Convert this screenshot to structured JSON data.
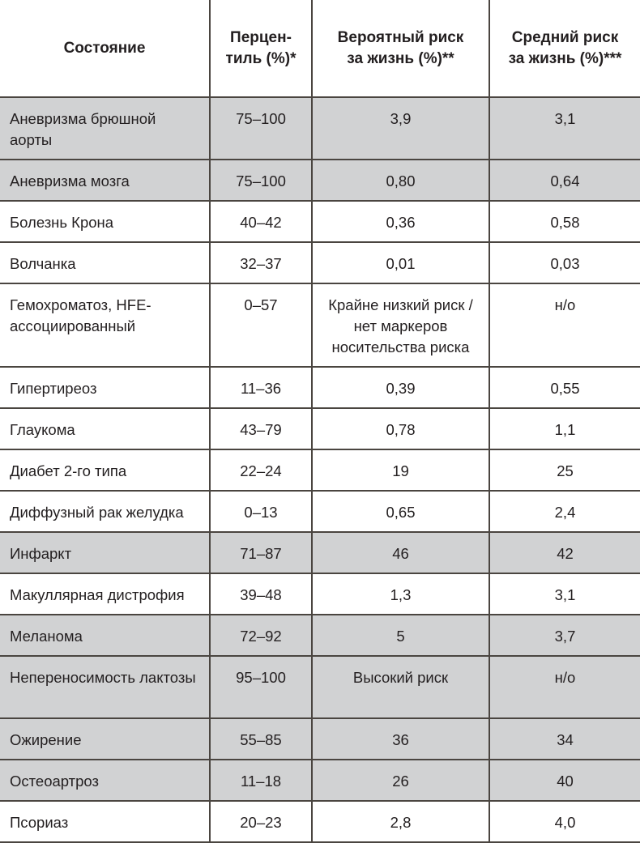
{
  "table": {
    "headers": [
      "Состояние",
      "Перцен-\nтиль (%)*",
      "Вероятный риск\nза жизнь (%)**",
      "Средний риск\nза жизнь (%)***"
    ],
    "header_lines": [
      [
        "Состояние"
      ],
      [
        "Перцен-",
        "тиль (%)*"
      ],
      [
        "Вероятный риск",
        "за жизнь (%)**"
      ],
      [
        "Средний риск",
        "за жизнь (%)***"
      ]
    ],
    "rows": [
      {
        "condition": "Аневризма брюшной аорты",
        "percentile": "75–100",
        "probable_risk": "3,9",
        "average_risk": "3,1",
        "shaded": true
      },
      {
        "condition": "Аневризма мозга",
        "percentile": "75–100",
        "probable_risk": "0,80",
        "average_risk": "0,64",
        "shaded": true
      },
      {
        "condition": "Болезнь Крона",
        "percentile": "40–42",
        "probable_risk": "0,36",
        "average_risk": "0,58",
        "shaded": false
      },
      {
        "condition": "Волчанка",
        "percentile": "32–37",
        "probable_risk": "0,01",
        "average_risk": "0,03",
        "shaded": false
      },
      {
        "condition": "Гемохроматоз, HFE-ассоциированный",
        "percentile": "0–57",
        "probable_risk": "Крайне низкий риск / нет маркеров носительства риска",
        "average_risk": "н/о",
        "shaded": false
      },
      {
        "condition": "Гипертиреоз",
        "percentile": "11–36",
        "probable_risk": "0,39",
        "average_risk": "0,55",
        "shaded": false
      },
      {
        "condition": "Глаукома",
        "percentile": "43–79",
        "probable_risk": "0,78",
        "average_risk": "1,1",
        "shaded": false
      },
      {
        "condition": "Диабет 2-го типа",
        "percentile": "22–24",
        "probable_risk": "19",
        "average_risk": "25",
        "shaded": false
      },
      {
        "condition": "Диффузный рак желудка",
        "percentile": "0–13",
        "probable_risk": "0,65",
        "average_risk": "2,4",
        "shaded": false
      },
      {
        "condition": "Инфаркт",
        "percentile": "71–87",
        "probable_risk": "46",
        "average_risk": "42",
        "shaded": true
      },
      {
        "condition": "Макуллярная дистрофия",
        "percentile": "39–48",
        "probable_risk": "1,3",
        "average_risk": "3,1",
        "shaded": false
      },
      {
        "condition": "Меланома",
        "percentile": "72–92",
        "probable_risk": "5",
        "average_risk": "3,7",
        "shaded": true
      },
      {
        "condition": "Непереносимость лактозы",
        "percentile": "95–100",
        "probable_risk": "Высокий риск",
        "average_risk": "н/о",
        "shaded": true
      },
      {
        "condition": "Ожирение",
        "percentile": "55–85",
        "probable_risk": "36",
        "average_risk": "34",
        "shaded": true
      },
      {
        "condition": "Остеоартроз",
        "percentile": "11–18",
        "probable_risk": "26",
        "average_risk": "40",
        "shaded": true
      },
      {
        "condition": "Псориаз",
        "percentile": "20–23",
        "probable_risk": "2,8",
        "average_risk": "4,0",
        "shaded": false
      }
    ],
    "colors": {
      "shaded_row": "#d1d2d3",
      "border": "#4a4540",
      "text": "#231f20"
    }
  }
}
